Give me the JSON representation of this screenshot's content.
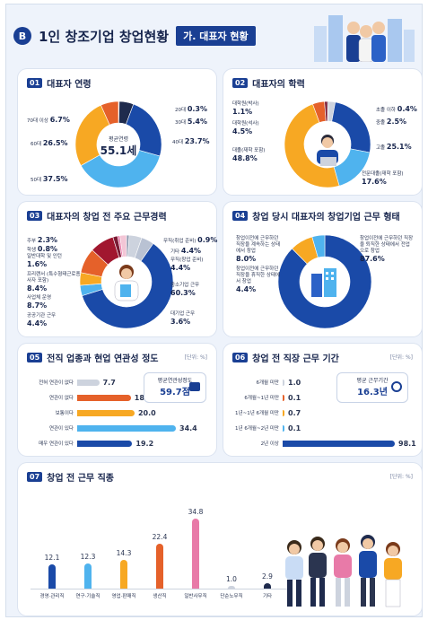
{
  "header": {
    "badge": "B",
    "title": "1인 창조기업 창업현황",
    "subtitle": "가. 대표자 현황"
  },
  "sections": {
    "age": {
      "num": "01",
      "title": "대표자 연령",
      "center_label": "평균연령",
      "center_value": "55.1세",
      "items": [
        {
          "label": "20대",
          "value": "0.3%",
          "pct": 0.3,
          "color": "#cdd3de"
        },
        {
          "label": "30대",
          "value": "5.4%",
          "pct": 5.4,
          "color": "#1f2b4d"
        },
        {
          "label": "40대",
          "value": "23.7%",
          "pct": 23.7,
          "color": "#1a4aa8"
        },
        {
          "label": "50대",
          "value": "37.5%",
          "pct": 37.5,
          "color": "#4fb3ee"
        },
        {
          "label": "60대",
          "value": "26.5%",
          "pct": 26.5,
          "color": "#f7a823"
        },
        {
          "label": "70대 이상",
          "value": "6.7%",
          "pct": 6.7,
          "color": "#e5612a"
        }
      ]
    },
    "edu": {
      "num": "02",
      "title": "대표자의 학력",
      "items": [
        {
          "label": "초졸 이하",
          "value": "0.4%",
          "pct": 0.4,
          "color": "#1f2b4d"
        },
        {
          "label": "중졸",
          "value": "2.5%",
          "pct": 2.5,
          "color": "#cdd3de"
        },
        {
          "label": "고졸",
          "value": "25.1%",
          "pct": 25.1,
          "color": "#1a4aa8"
        },
        {
          "label": "전문대졸(재학 포함)",
          "value": "17.6%",
          "pct": 17.6,
          "color": "#4fb3ee"
        },
        {
          "label": "대졸(재학 포함)",
          "value": "48.8%",
          "pct": 48.8,
          "color": "#f7a823"
        },
        {
          "label": "대학원(석사)",
          "value": "4.5%",
          "pct": 4.5,
          "color": "#e5612a"
        },
        {
          "label": "대학원(박사)",
          "value": "1.1%",
          "pct": 1.1,
          "color": "#7a1a33"
        }
      ]
    },
    "career": {
      "num": "03",
      "title": "대표자의 창업 전 주요 근무경력",
      "items": [
        {
          "label": "무직(취업 준비)",
          "value": "0.9%",
          "pct": 0.9,
          "color": "#8c97ad"
        },
        {
          "label": "기타",
          "value": "4.4%",
          "pct": 4.4,
          "color": "#cdd3de"
        },
        {
          "label": "무직(창업 준비)",
          "value": "4.4%",
          "pct": 4.4,
          "color": "#b9c2d3"
        },
        {
          "label": "중소기업 근무",
          "value": "60.3%",
          "pct": 60.3,
          "color": "#1a4aa8"
        },
        {
          "label": "대기업 근무",
          "value": "3.6%",
          "pct": 3.6,
          "color": "#4fb3ee"
        },
        {
          "label": "공공기관 근무",
          "value": "4.4%",
          "pct": 4.4,
          "color": "#f7a823"
        },
        {
          "label": "사업체 운영",
          "value": "8.7%",
          "pct": 8.7,
          "color": "#e5612a"
        },
        {
          "label": "프리랜서 (특수형태근로종사자 포함)",
          "value": "8.4%",
          "pct": 8.4,
          "color": "#a1172f"
        },
        {
          "label": "일반대학 및 인턴",
          "value": "1.6%",
          "pct": 1.6,
          "color": "#7a1a33"
        },
        {
          "label": "학생",
          "value": "0.8%",
          "pct": 0.8,
          "color": "#e87aa8"
        },
        {
          "label": "주부",
          "value": "2.3%",
          "pct": 2.3,
          "color": "#f3c6d6"
        }
      ]
    },
    "form": {
      "num": "04",
      "title": "창업 당시 대표자의 창업기업 근무 형태",
      "items": [
        {
          "label": "창업이전에 근무하던 직장을 퇴직한 상태에서 전업으로 창업",
          "value": "87.6%",
          "pct": 87.6,
          "color": "#1a4aa8"
        },
        {
          "label": "창업이전에 근무하던 직장을 계속하는 상태에서 창업",
          "value": "8.0%",
          "pct": 8.0,
          "color": "#f7a823"
        },
        {
          "label": "창업이전에 근무하던 직장을 휴직한 상태에서 창업",
          "value": "4.4%",
          "pct": 4.4,
          "color": "#4fb3ee"
        }
      ]
    },
    "relevance": {
      "num": "05",
      "title": "전직 업종과 현업 연관성 정도",
      "unit": "[단위: %]",
      "avg_label": "평균연관성정도",
      "avg_value": "59.7점",
      "items": [
        {
          "label": "전혀 연관이 없다",
          "value": "7.7",
          "v": 7.7,
          "color": "#cdd3de"
        },
        {
          "label": "연관이 없다",
          "value": "18.7",
          "v": 18.7,
          "color": "#e5612a"
        },
        {
          "label": "보통이다",
          "value": "20.0",
          "v": 20.0,
          "color": "#f7a823"
        },
        {
          "label": "연관이 있다",
          "value": "34.4",
          "v": 34.4,
          "color": "#4fb3ee"
        },
        {
          "label": "매우 연관이 있다",
          "value": "19.2",
          "v": 19.2,
          "color": "#1a4aa8"
        }
      ]
    },
    "period": {
      "num": "06",
      "title": "창업 전 직장 근무 기간",
      "unit": "[단위: %]",
      "avg_label": "평균 근무기간",
      "avg_value": "16.3년",
      "items": [
        {
          "label": "6개월 미만",
          "value": "1.0",
          "v": 1.0,
          "color": "#cdd3de"
        },
        {
          "label": "6개월~1년 미만",
          "value": "0.1",
          "v": 0.1,
          "color": "#e5612a"
        },
        {
          "label": "1년~1년 6개월 미만",
          "value": "0.7",
          "v": 0.7,
          "color": "#f7a823"
        },
        {
          "label": "1년 6개월~2년 미만",
          "value": "0.1",
          "v": 0.1,
          "color": "#4fb3ee"
        },
        {
          "label": "2년 이상",
          "value": "98.1",
          "v": 98.1,
          "color": "#1a4aa8"
        }
      ]
    },
    "job": {
      "num": "07",
      "title": "창업 전 근무 직종",
      "unit": "[단위: %]",
      "items": [
        {
          "label": "경영·관리직",
          "value": "12.1",
          "v": 12.1,
          "color": "#1a4aa8"
        },
        {
          "label": "연구·기술직",
          "value": "12.3",
          "v": 12.3,
          "color": "#4fb3ee"
        },
        {
          "label": "영업·판매직",
          "value": "14.3",
          "v": 14.3,
          "color": "#f7a823"
        },
        {
          "label": "생산직",
          "value": "22.4",
          "v": 22.4,
          "color": "#e5612a"
        },
        {
          "label": "일반사무직",
          "value": "34.8",
          "v": 34.8,
          "color": "#e87aa8"
        },
        {
          "label": "단순노무직",
          "value": "1.0",
          "v": 1.0,
          "color": "#cdd3de"
        },
        {
          "label": "기타",
          "value": "2.9",
          "v": 2.9,
          "color": "#1f2b4d"
        }
      ]
    }
  }
}
